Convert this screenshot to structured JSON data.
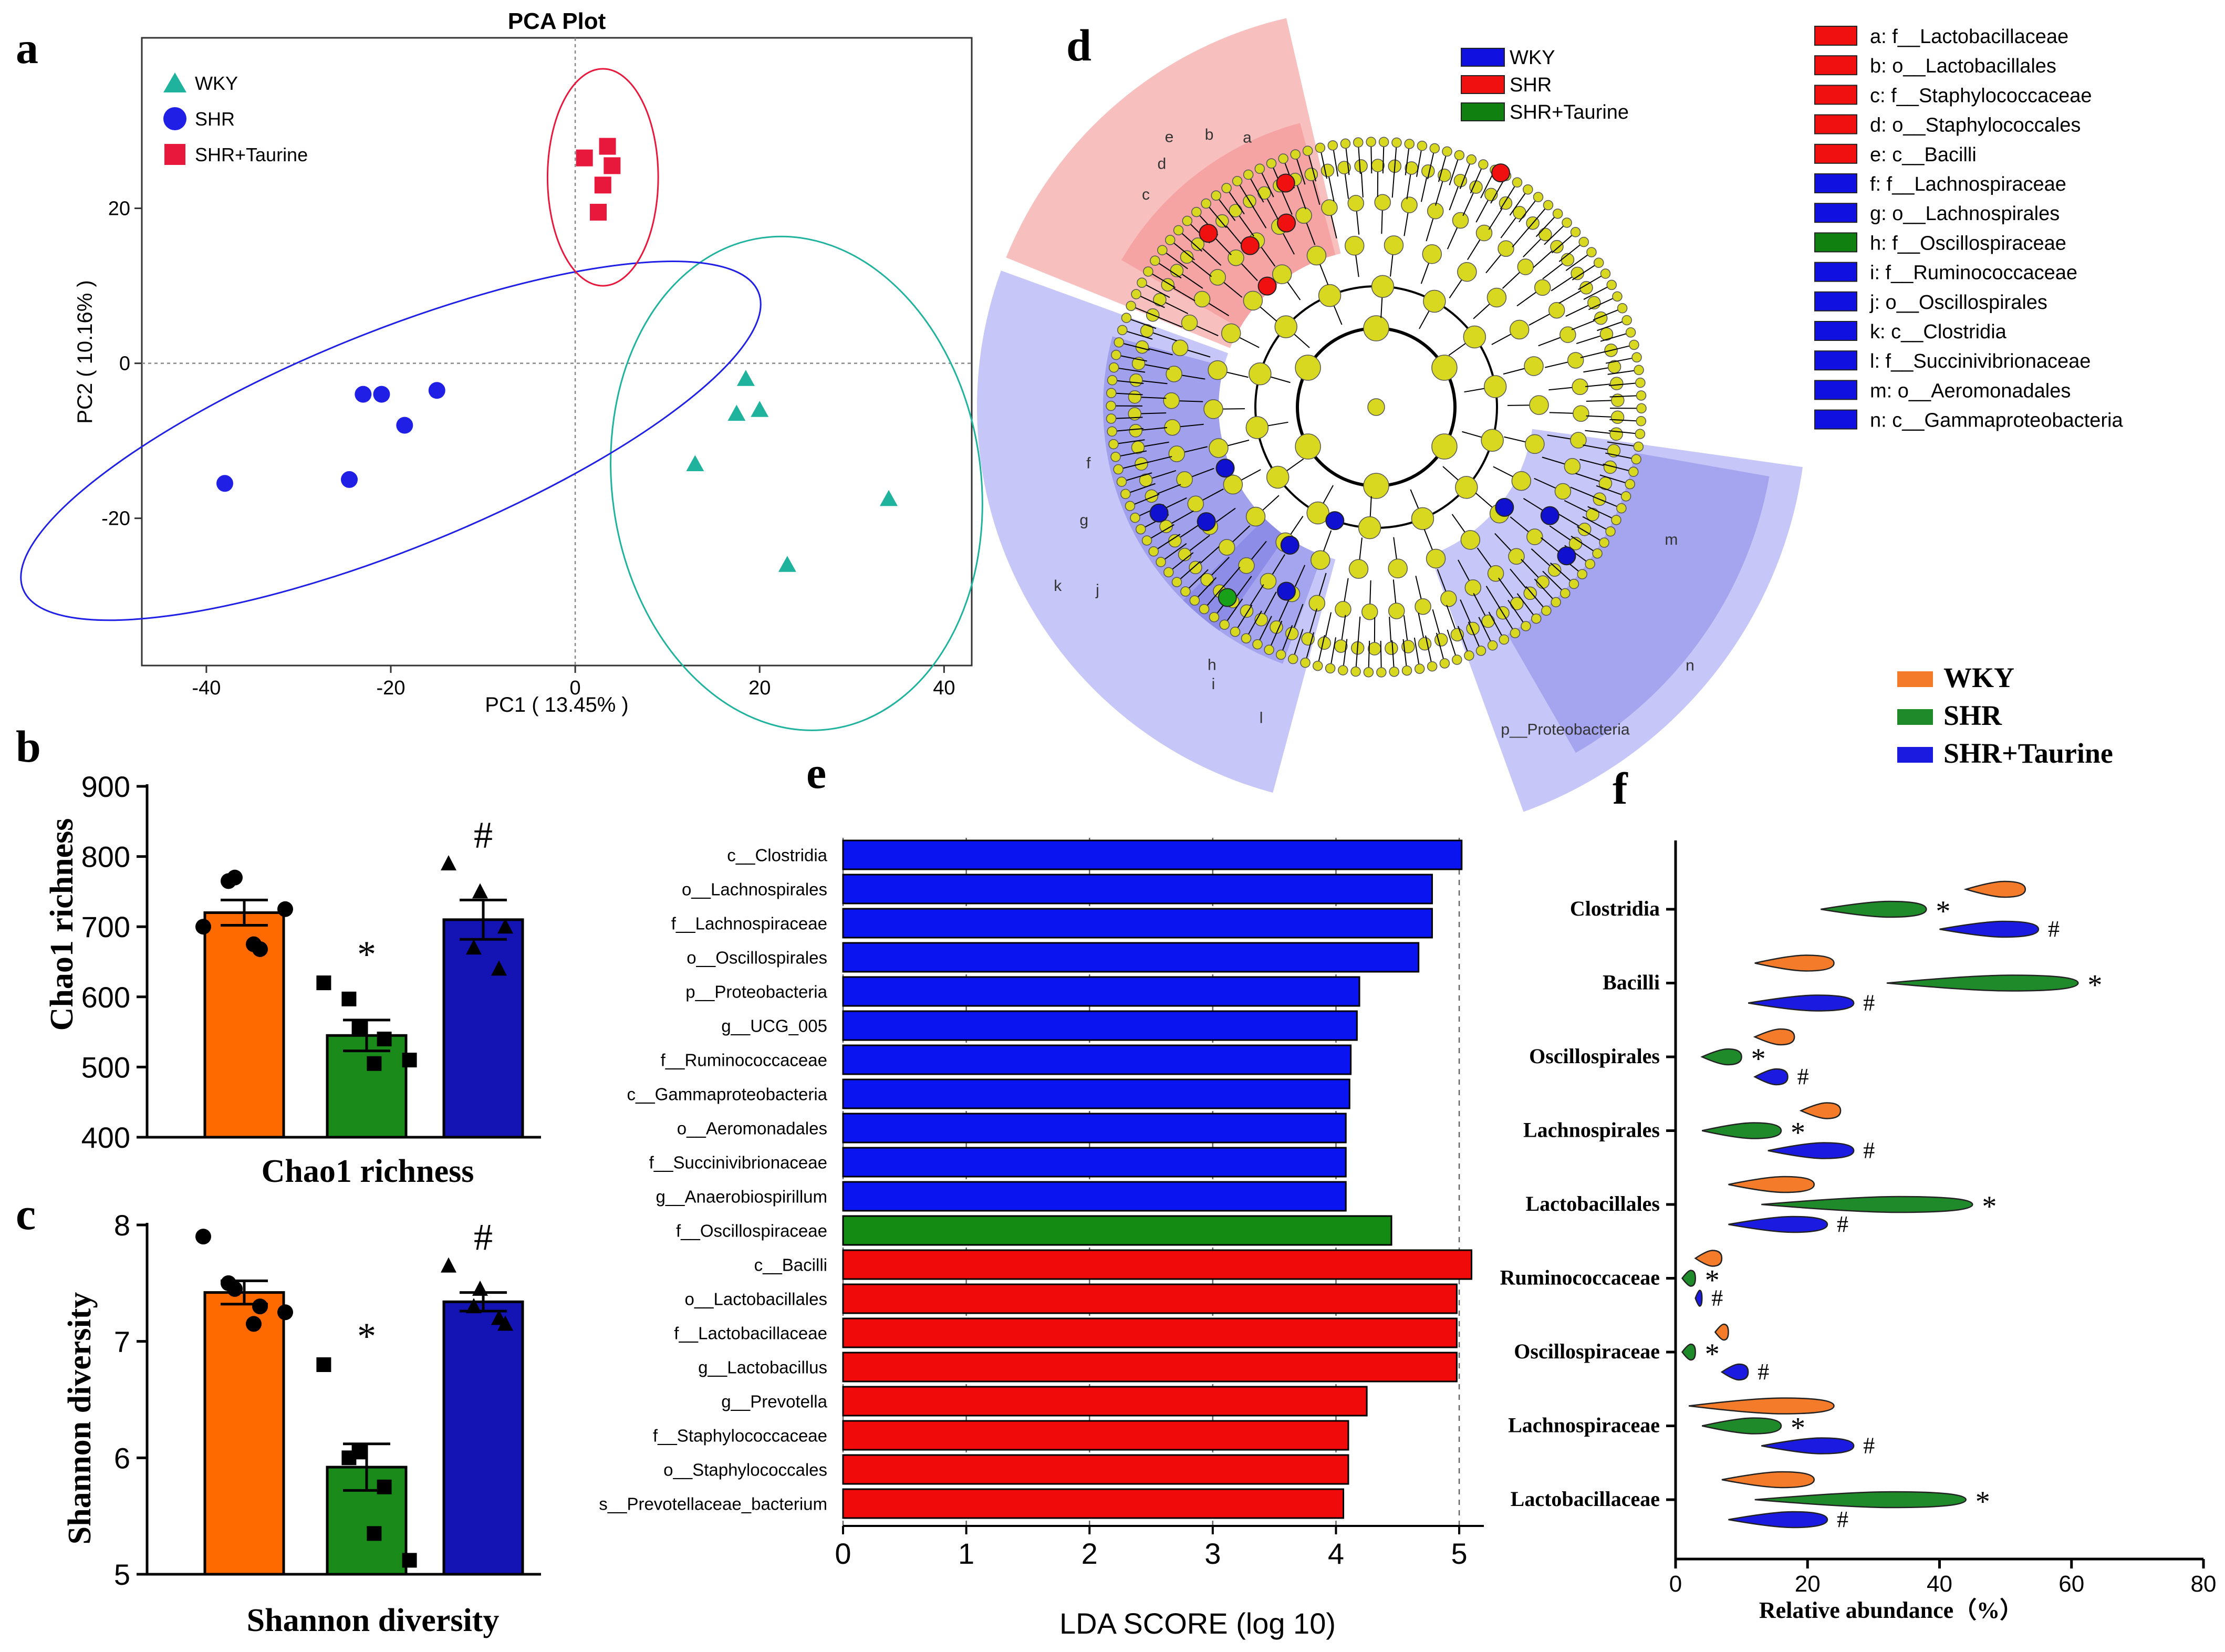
{
  "panel_labels": {
    "a": "a",
    "b": "b",
    "c": "c",
    "d": "d",
    "e": "e",
    "f": "f"
  },
  "colors": {
    "wky_pca": "#1fb39e",
    "shr_pca": "#1f1fe6",
    "taurine_pca": "#e8173c",
    "bar_orange": "#ff6a00",
    "bar_green": "#1a8a1a",
    "bar_blue": "#1414b4",
    "lda_blue": "#0a14f0",
    "lda_green": "#148c14",
    "lda_red": "#f00a0a",
    "f_orange": "#f47b2a",
    "f_green": "#1f8a2a",
    "f_blue": "#1a1ae0"
  },
  "chart_data": [
    {
      "id": "a",
      "type": "scatter",
      "title": "PCA Plot",
      "xlabel": "PC1 ( 13.45% )",
      "ylabel": "PC2 ( 10.16% )",
      "xlim": [
        -47,
        43
      ],
      "ylim": [
        -39,
        42
      ],
      "xticks": [
        -40,
        -20,
        0,
        20,
        40
      ],
      "yticks": [
        -20,
        0,
        20
      ],
      "xtick_labels": [
        "-40",
        "-20",
        "0",
        "20",
        "40"
      ],
      "ytick_labels": [
        "-20",
        "0",
        "20"
      ],
      "series": [
        {
          "name": "WKY",
          "marker": "triangle",
          "points": [
            [
              18.5,
              -2
            ],
            [
              17.5,
              -6.5
            ],
            [
              20,
              -6
            ],
            [
              13,
              -13
            ],
            [
              34,
              -17.5
            ],
            [
              23,
              -26
            ]
          ],
          "ellipse": {
            "cx": 24,
            "cy": -15.5,
            "rx": 20,
            "ry": 32,
            "angle_deg": -8
          }
        },
        {
          "name": "SHR",
          "marker": "circle",
          "points": [
            [
              -23,
              -4
            ],
            [
              -21,
              -4
            ],
            [
              -15,
              -3.5
            ],
            [
              -18.5,
              -8
            ],
            [
              -24.5,
              -15
            ],
            [
              -38,
              -15.5
            ]
          ],
          "ellipse": {
            "cx": -20,
            "cy": -10,
            "rx": 43,
            "ry": 14,
            "angle_deg": -22
          }
        },
        {
          "name": "SHR+Taurine",
          "marker": "square",
          "points": [
            [
              1,
              26.5
            ],
            [
              3.5,
              28
            ],
            [
              4,
              25.5
            ],
            [
              3,
              23
            ],
            [
              2.5,
              19.5
            ]
          ],
          "ellipse": {
            "cx": 3,
            "cy": 24,
            "rx": 6,
            "ry": 14,
            "angle_deg": 0
          }
        }
      ],
      "legend": [
        "WKY",
        "SHR",
        "SHR+Taurine"
      ]
    },
    {
      "id": "b",
      "type": "bar",
      "title": "",
      "xlabel": "Chao1 richness",
      "ylabel": "Chao1 richness",
      "ylim": [
        400,
        900
      ],
      "yticks": [
        400,
        500,
        600,
        700,
        800,
        900
      ],
      "ytick_labels": [
        "400",
        "500",
        "600",
        "700",
        "800",
        "900"
      ],
      "categories": [
        "WKY",
        "SHR",
        "SHR+Taurine"
      ],
      "values": [
        720,
        545,
        710
      ],
      "sem": [
        18,
        22,
        28
      ],
      "points": [
        [
          700,
          770,
          765,
          668,
          675,
          725
        ],
        [
          620,
          555,
          597,
          540,
          505,
          510
        ],
        [
          790,
          750,
          670,
          700,
          640
        ]
      ],
      "annotations": [
        "",
        "*",
        "#"
      ]
    },
    {
      "id": "c",
      "type": "bar",
      "title": "",
      "xlabel": "Shannon diversity",
      "ylabel": "Shannon diversity",
      "ylim": [
        5,
        8
      ],
      "yticks": [
        5,
        6,
        7,
        8
      ],
      "ytick_labels": [
        "5",
        "6",
        "7",
        "8"
      ],
      "categories": [
        "WKY",
        "SHR",
        "SHR+Taurine"
      ],
      "values": [
        7.42,
        5.92,
        7.34
      ],
      "sem": [
        0.1,
        0.2,
        0.08
      ],
      "points": [
        [
          7.9,
          7.45,
          7.5,
          7.3,
          7.15,
          7.25
        ],
        [
          6.8,
          6.05,
          6.0,
          5.75,
          5.35,
          5.12
        ],
        [
          7.65,
          7.45,
          7.3,
          7.15,
          7.2
        ]
      ],
      "annotations": [
        "",
        "*",
        "#"
      ]
    },
    {
      "id": "d",
      "type": "cladogram",
      "title": "",
      "legend_groups": [
        "WKY",
        "SHR",
        "SHR+Taurine"
      ],
      "nodes": [
        "a: f__Lactobacillaceae",
        "b: o__Lactobacillales",
        "c: f__Staphylococcaceae",
        "d: o__Staphylococcales",
        "e: c__Bacilli",
        "f: f__Lachnospiraceae",
        "g: o__Lachnospirales",
        "h: f__Oscillospiraceae",
        "i: f__Ruminococcaceae",
        "j: o__Oscillospirales",
        "k: c__Clostridia",
        "l: f__Succinivibrionaceae",
        "m: o__Aeromonadales",
        "n: c__Gammaproteobacteria"
      ],
      "node_groups": [
        "SHR",
        "SHR",
        "SHR",
        "SHR",
        "SHR",
        "WKY",
        "WKY",
        "SHR+Taurine",
        "WKY",
        "WKY",
        "WKY",
        "WKY",
        "WKY",
        "WKY"
      ],
      "sector_labels": [
        "e",
        "b",
        "a",
        "c",
        "d",
        "k",
        "j",
        "g",
        "f",
        "i",
        "h",
        "l",
        "n",
        "m",
        "p__Proteobacteria"
      ]
    },
    {
      "id": "e",
      "type": "bar",
      "orientation": "horizontal",
      "title": "",
      "xlabel": "LDA SCORE (log 10)",
      "xlim": [
        0,
        5.2
      ],
      "xticks": [
        0,
        1,
        2,
        3,
        4,
        5
      ],
      "xtick_labels": [
        "0",
        "1",
        "2",
        "3",
        "4",
        "5"
      ],
      "categories": [
        "c__Clostridia",
        "o__Lachnospirales",
        "f__Lachnospiraceae",
        "o__Oscillospirales",
        "p__Proteobacteria",
        "g__UCG_005",
        "f__Ruminococcaceae",
        "c__Gammaproteobacteria",
        "o__Aeromonadales",
        "f__Succinivibrionaceae",
        "g__Anaerobiospirillum",
        "f__Oscillospiraceae",
        "c__Bacilli",
        "o__Lactobacillales",
        "f__Lactobacillaceae",
        "g__Lactobacillus",
        "g__Prevotella",
        "f__Staphylococcaceae",
        "o__Staphylococcales",
        "s__Prevotellaceae_bacterium"
      ],
      "values": [
        5.02,
        4.78,
        4.78,
        4.67,
        4.19,
        4.17,
        4.12,
        4.11,
        4.08,
        4.08,
        4.08,
        4.45,
        5.1,
        4.98,
        4.98,
        4.98,
        4.25,
        4.1,
        4.1,
        4.06
      ],
      "groups": [
        "blue",
        "blue",
        "blue",
        "blue",
        "blue",
        "blue",
        "blue",
        "blue",
        "blue",
        "blue",
        "blue",
        "green",
        "red",
        "red",
        "red",
        "red",
        "red",
        "red",
        "red",
        "red"
      ]
    },
    {
      "id": "f",
      "type": "violin",
      "title": "",
      "xlabel": "Relative abundance（%）",
      "xlim": [
        0,
        80
      ],
      "xticks": [
        0,
        20,
        40,
        60,
        80
      ],
      "xtick_labels": [
        "0",
        "20",
        "40",
        "60",
        "80"
      ],
      "categories": [
        "Clostridia",
        "Bacilli",
        "Oscillospirales",
        "Lachnospirales",
        "Lactobacillales",
        "Ruminococcaceae",
        "Oscillospiraceae",
        "Lachnospiraceae",
        "Lactobacillaceae"
      ],
      "series": [
        {
          "name": "WKY",
          "ranges": [
            [
              44,
              53
            ],
            [
              12,
              24
            ],
            [
              12,
              18
            ],
            [
              19,
              25
            ],
            [
              8,
              21
            ],
            [
              3,
              7
            ],
            [
              6,
              8
            ],
            [
              2,
              24
            ],
            [
              7,
              21
            ]
          ]
        },
        {
          "name": "SHR",
          "ranges": [
            [
              22,
              38
            ],
            [
              32,
              61
            ],
            [
              4,
              10
            ],
            [
              4,
              16
            ],
            [
              13,
              45
            ],
            [
              1,
              3
            ],
            [
              1,
              3
            ],
            [
              4,
              16
            ],
            [
              12,
              44
            ]
          ]
        },
        {
          "name": "SHR+Taurine",
          "ranges": [
            [
              40,
              55
            ],
            [
              11,
              27
            ],
            [
              12,
              17
            ],
            [
              14,
              27
            ],
            [
              8,
              23
            ],
            [
              3,
              4
            ],
            [
              7,
              11
            ],
            [
              13,
              27
            ],
            [
              8,
              23
            ]
          ]
        }
      ],
      "annotations": {
        "SHR": "*",
        "SHR+Taurine": "#"
      },
      "legend": [
        "WKY",
        "SHR",
        "SHR+Taurine"
      ]
    }
  ]
}
